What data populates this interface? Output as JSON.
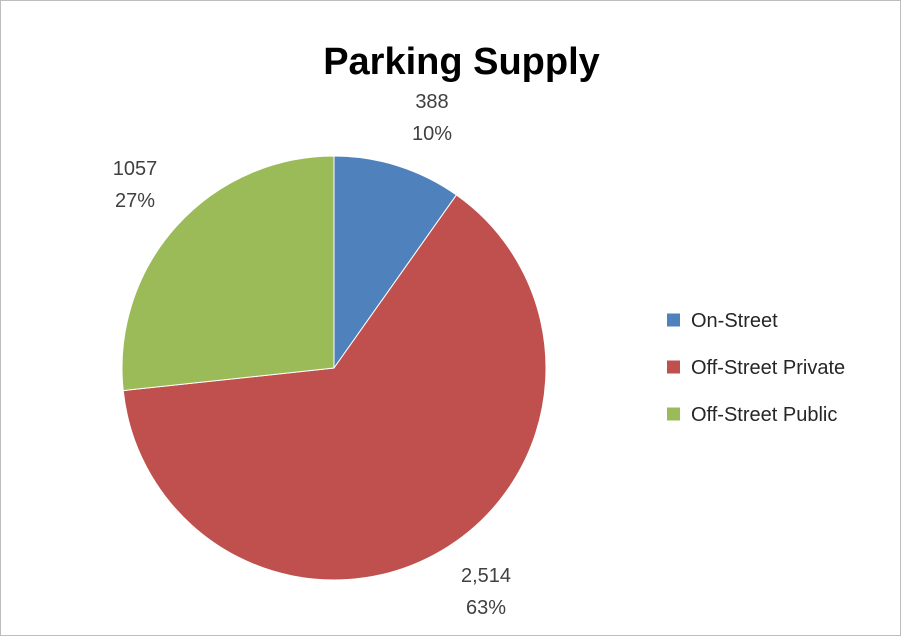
{
  "chart_data": {
    "type": "pie",
    "title": "Parking Supply",
    "slices": [
      {
        "label": "On-Street",
        "value": 388,
        "value_text": "388",
        "percent_text": "10%",
        "color": "#4f81bd"
      },
      {
        "label": "Off-Street Private",
        "value": 2514,
        "value_text": "2,514",
        "percent_text": "63%",
        "color": "#c0504d"
      },
      {
        "label": "Off-Street Public",
        "value": 1057,
        "value_text": "1057",
        "percent_text": "27%",
        "color": "#9bbb59"
      }
    ],
    "legend": {
      "position": "right",
      "items": [
        "On-Street",
        "Off-Street Private",
        "Off-Street Public"
      ]
    }
  }
}
